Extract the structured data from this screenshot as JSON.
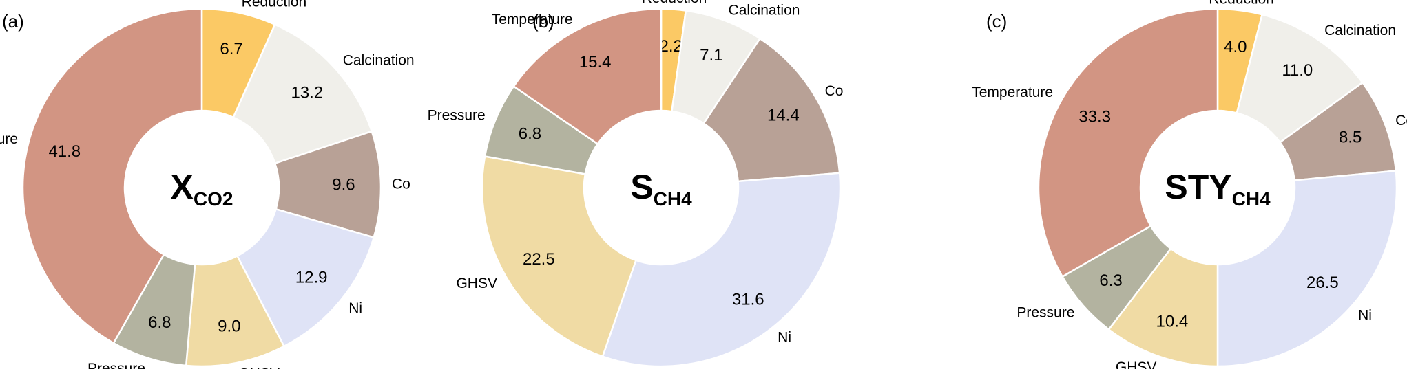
{
  "colors": {
    "Reduction": "#fbc965",
    "Calcination": "#f0efea",
    "Co": "#b8a196",
    "Ni": "#dfe3f6",
    "GHSV": "#f0dba4",
    "Pressure": "#b3b3a0",
    "Temperature": "#d29583"
  },
  "chart_data": [
    {
      "type": "pie",
      "panel_label": "(a)",
      "center_main": "X",
      "center_sub": "CO2",
      "slices": [
        {
          "label": "Reduction",
          "value": 6.7
        },
        {
          "label": "Calcination",
          "value": 13.2
        },
        {
          "label": "Co",
          "value": 9.6
        },
        {
          "label": "Ni",
          "value": 12.9
        },
        {
          "label": "GHSV",
          "value": 9.0
        },
        {
          "label": "Pressure",
          "value": 6.8
        },
        {
          "label": "Temperature",
          "value": 41.8
        }
      ]
    },
    {
      "type": "pie",
      "panel_label": "(b)",
      "center_main": "S",
      "center_sub": "CH4",
      "slices": [
        {
          "label": "Reduction",
          "value": 2.2
        },
        {
          "label": "Calcination",
          "value": 7.1
        },
        {
          "label": "Co",
          "value": 14.4
        },
        {
          "label": "Ni",
          "value": 31.6
        },
        {
          "label": "GHSV",
          "value": 22.5
        },
        {
          "label": "Pressure",
          "value": 6.8
        },
        {
          "label": "Temperature",
          "value": 15.4
        }
      ]
    },
    {
      "type": "pie",
      "panel_label": "(c)",
      "center_main": "STY",
      "center_sub": "CH4",
      "slices": [
        {
          "label": "Reduction",
          "value": 4.0
        },
        {
          "label": "Calcination",
          "value": 11.0
        },
        {
          "label": "Co",
          "value": 8.5
        },
        {
          "label": "Ni",
          "value": 26.5
        },
        {
          "label": "GHSV",
          "value": 10.4
        },
        {
          "label": "Pressure",
          "value": 6.3
        },
        {
          "label": "Temperature",
          "value": 33.3
        }
      ]
    }
  ]
}
